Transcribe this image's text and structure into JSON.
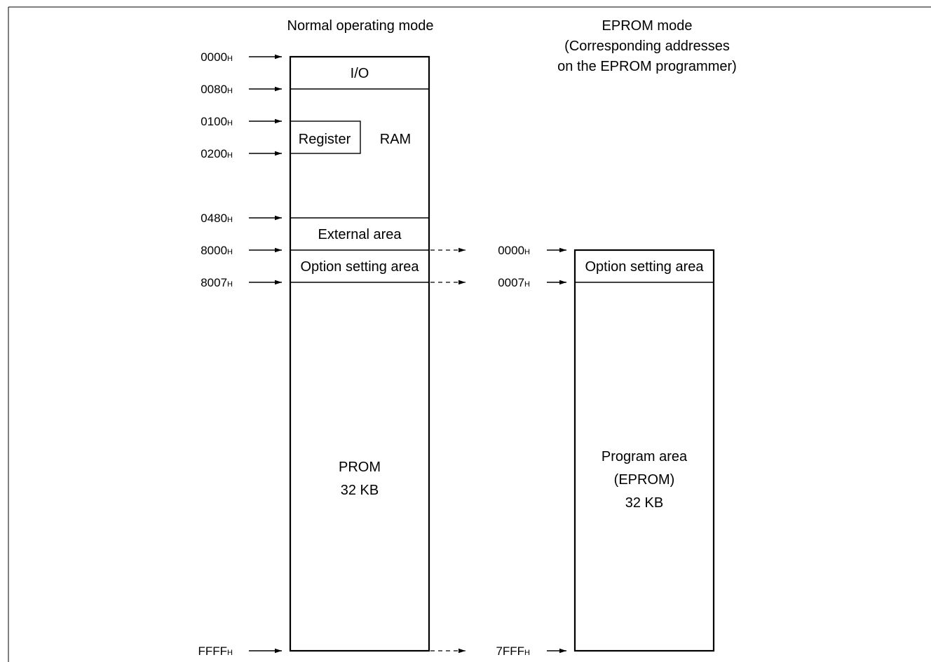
{
  "normal": {
    "title": "Normal operating mode",
    "addresses": [
      {
        "value": "0000",
        "suffix": "H"
      },
      {
        "value": "0080",
        "suffix": "H"
      },
      {
        "value": "0100",
        "suffix": "H"
      },
      {
        "value": "0200",
        "suffix": "H"
      },
      {
        "value": "0480",
        "suffix": "H"
      },
      {
        "value": "8000",
        "suffix": "H"
      },
      {
        "value": "8007",
        "suffix": "H"
      },
      {
        "value": "FFFF",
        "suffix": "H"
      }
    ],
    "areas": {
      "io": "I/O",
      "register": "Register",
      "ram": "RAM",
      "external": "External area",
      "option": "Option setting area",
      "prom_line1": "PROM",
      "prom_line2": "32 KB"
    }
  },
  "eprom": {
    "title_line1": "EPROM mode",
    "title_line2": "(Corresponding addresses",
    "title_line3": "on the EPROM programmer)",
    "addresses": [
      {
        "value": "0000",
        "suffix": "H"
      },
      {
        "value": "0007",
        "suffix": "H"
      },
      {
        "value": "7FFF",
        "suffix": "H"
      }
    ],
    "areas": {
      "option": "Option setting area",
      "program_line1": "Program area",
      "program_line2": "(EPROM)",
      "program_line3": "32 KB"
    }
  }
}
